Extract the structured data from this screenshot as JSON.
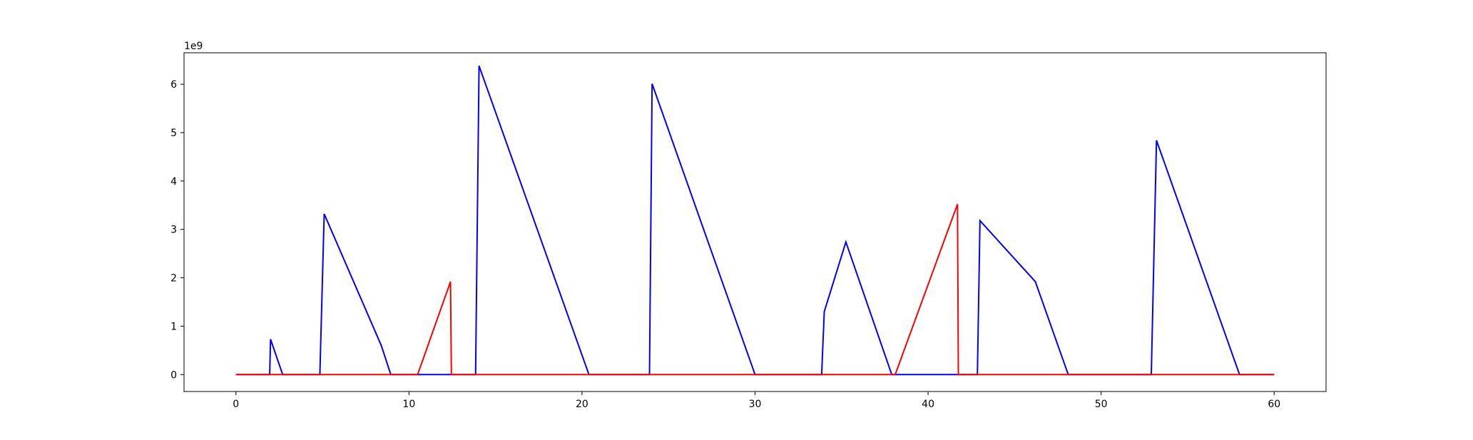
{
  "chart_data": {
    "type": "line",
    "title": "",
    "xlabel": "",
    "ylabel": "",
    "y_offset_text": "1e9",
    "xlim": [
      -3,
      63
    ],
    "ylim": [
      -0.35,
      6.65
    ],
    "x_ticks": [
      0,
      10,
      20,
      30,
      40,
      50,
      60
    ],
    "x_tick_labels": [
      "0",
      "10",
      "20",
      "30",
      "40",
      "50",
      "60"
    ],
    "y_ticks": [
      0,
      1,
      2,
      3,
      4,
      5,
      6
    ],
    "y_tick_labels": [
      "0",
      "1",
      "2",
      "3",
      "4",
      "5",
      "6"
    ],
    "y_unit_multiplier": 1000000000,
    "grid": false,
    "legend": "none",
    "series": [
      {
        "color": "#0000ff",
        "x": [
          0,
          1.95,
          2.0,
          2.7,
          4.85,
          5.1,
          8.4,
          8.95,
          12.4,
          13.85,
          14.05,
          20.4,
          23.9,
          24.05,
          30.0,
          33.85,
          34.0,
          35.25,
          37.9,
          41.7,
          42.85,
          43.0,
          46.2,
          48.1,
          52.9,
          53.2,
          58.0,
          60
        ],
        "values": [
          0,
          0,
          0.73,
          0,
          0,
          3.32,
          0.6,
          0,
          0,
          0,
          6.38,
          0,
          0,
          6.01,
          0,
          0,
          1.3,
          2.74,
          0,
          0,
          0,
          3.18,
          1.92,
          0,
          0,
          4.84,
          0,
          0
        ]
      },
      {
        "color": "#ff0000",
        "x": [
          0,
          10.5,
          12.4,
          12.45,
          38.1,
          41.7,
          41.75,
          60
        ],
        "values": [
          0,
          0,
          1.92,
          0,
          0,
          3.52,
          0,
          0
        ]
      }
    ]
  }
}
